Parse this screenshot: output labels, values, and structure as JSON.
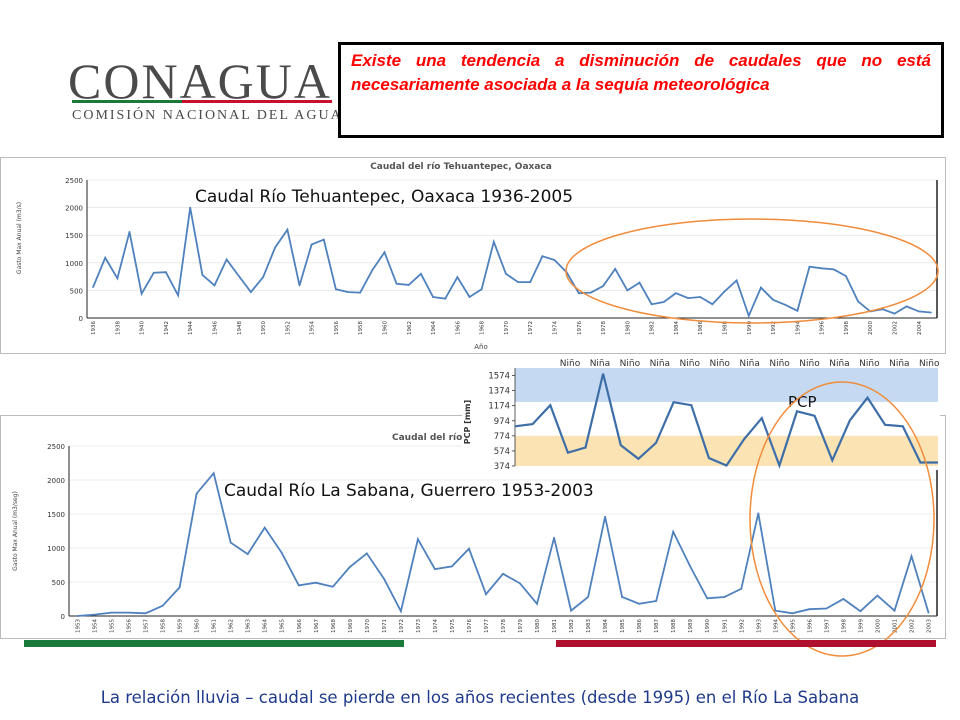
{
  "logo": {
    "name": "CONAGUA",
    "subtitle": "COMISIÓN NACIONAL DEL AGUA"
  },
  "callout": {
    "text": "Existe una tendencia a disminución de caudales que no está necesariamente asociada a la sequía meteorológica"
  },
  "overlay_labels": {
    "tehuantepec": "Caudal Río Tehuantepec, Oaxaca 1936-2005",
    "sabana": "Caudal Río La Sabana, Guerrero 1953-2003",
    "pcp": "PCP"
  },
  "footer": {
    "text": "La relación lluvia – caudal se pierde en los años recientes (desde 1995) en el Río La Sabana"
  },
  "colors": {
    "line": "#4f81bd",
    "ellipse": "#f08c3a",
    "callout_text": "#ff0000",
    "footer_text": "#1f3a8a",
    "band_blue": "#c5daf2",
    "band_orange": "#fbe3b3",
    "green_bar": "#1a7a3a",
    "red_bar": "#b01030"
  },
  "chart_data": [
    {
      "type": "line",
      "title": "Caudal del río Tehuantepec, Oaxaca",
      "xlabel": "Año",
      "ylabel": "Gasto Max Anual (m3/s)",
      "ylim": [
        0,
        2500
      ],
      "yticks": [
        0,
        500,
        1000,
        1500,
        2000,
        2500
      ],
      "x": [
        1936,
        1937,
        1938,
        1939,
        1940,
        1941,
        1942,
        1943,
        1944,
        1945,
        1946,
        1947,
        1948,
        1949,
        1950,
        1951,
        1952,
        1953,
        1954,
        1955,
        1956,
        1957,
        1958,
        1959,
        1960,
        1961,
        1962,
        1963,
        1964,
        1965,
        1966,
        1967,
        1968,
        1969,
        1970,
        1971,
        1972,
        1973,
        1974,
        1975,
        1976,
        1977,
        1978,
        1979,
        1980,
        1981,
        1982,
        1983,
        1984,
        1985,
        1986,
        1987,
        1988,
        1989,
        1990,
        1991,
        1992,
        1993,
        1994,
        1995,
        1996,
        1997,
        1998,
        1999,
        2000,
        2001,
        2002,
        2003,
        2004,
        2005
      ],
      "x_tick_labels": [
        "1936",
        "1938",
        "1940",
        "1942",
        "1944",
        "1946",
        "1948",
        "1950",
        "1952",
        "1954",
        "1956",
        "1958",
        "1960",
        "1962",
        "1964",
        "1966",
        "1968",
        "1970",
        "1972",
        "1974",
        "1976",
        "1978",
        "1980",
        "1982",
        "1984",
        "1986",
        "1988",
        "1990",
        "1992",
        "1994",
        "1996",
        "1998",
        "2000",
        "2002",
        "2004"
      ],
      "series": [
        {
          "values": [
            560,
            1090,
            720,
            1560,
            440,
            820,
            830,
            410,
            2000,
            780,
            590,
            1060,
            760,
            470,
            740,
            1280,
            1600,
            590,
            1330,
            1420,
            520,
            470,
            460,
            870,
            1190,
            620,
            600,
            800,
            380,
            350,
            740,
            380,
            520,
            1380,
            800,
            650,
            650,
            1120,
            1050,
            830,
            450,
            460,
            580,
            890,
            500,
            640,
            250,
            290,
            450,
            360,
            380,
            250,
            480,
            680,
            40,
            550,
            330,
            240,
            130,
            930,
            900,
            880,
            760,
            300,
            120,
            160,
            80,
            210,
            120,
            100
          ]
        }
      ]
    },
    {
      "type": "line",
      "title": "Caudal del río La Sabana, Guerrero",
      "xlabel": "",
      "ylabel": "Gasto Max Anual (m3/seg)",
      "ylim": [
        0,
        2500
      ],
      "yticks": [
        0,
        500,
        1000,
        1500,
        2000,
        2500
      ],
      "x": [
        1953,
        1954,
        1955,
        1956,
        1957,
        1958,
        1959,
        1960,
        1961,
        1962,
        1963,
        1964,
        1965,
        1966,
        1967,
        1968,
        1969,
        1970,
        1971,
        1972,
        1973,
        1974,
        1975,
        1976,
        1977,
        1978,
        1979,
        1980,
        1981,
        1982,
        1983,
        1984,
        1985,
        1986,
        1987,
        1988,
        1989,
        1990,
        1991,
        1992,
        1993,
        1994,
        1995,
        1996,
        1997,
        1998,
        1999,
        2000,
        2001,
        2002,
        2003
      ],
      "x_tick_labels": [
        "1953",
        "1954",
        "1955",
        "1956",
        "1957",
        "1958",
        "1959",
        "1960",
        "1961",
        "1962",
        "1963",
        "1964",
        "1965",
        "1966",
        "1967",
        "1968",
        "1969",
        "1970",
        "1971",
        "1972",
        "1973",
        "1974",
        "1975",
        "1976",
        "1977",
        "1978",
        "1979",
        "1980",
        "1981",
        "1982",
        "1983",
        "1984",
        "1985",
        "1986",
        "1987",
        "1988",
        "1989",
        "1990",
        "1991",
        "1992",
        "1993",
        "1994",
        "1995",
        "1996",
        "1997",
        "1998",
        "1999",
        "2000",
        "2001",
        "2002",
        "2003"
      ],
      "series": [
        {
          "values": [
            0,
            20,
            50,
            50,
            40,
            150,
            420,
            1800,
            2100,
            1080,
            910,
            1300,
            930,
            450,
            490,
            430,
            720,
            920,
            550,
            70,
            1130,
            690,
            730,
            990,
            320,
            620,
            480,
            180,
            1150,
            80,
            280,
            1460,
            280,
            180,
            220,
            1240,
            730,
            260,
            280,
            400,
            1510,
            80,
            40,
            100,
            110,
            250,
            70,
            300,
            80,
            880,
            50
          ]
        }
      ]
    },
    {
      "type": "line",
      "title": "",
      "xlabel": "",
      "ylabel": "PCP [mm]",
      "yticks": [
        374,
        574,
        774,
        974,
        1174,
        1374,
        1574
      ],
      "ylim": [
        374,
        1674
      ],
      "bands": [
        {
          "from": 1224,
          "to": 1674,
          "color": "blue"
        },
        {
          "from": 374,
          "to": 774,
          "color": "orange"
        }
      ],
      "annotations": [
        "Niño",
        "Niña",
        "Niño",
        "Niña",
        "Niño",
        "Niño",
        "Niña",
        "Niño",
        "Niño",
        "Niña",
        "Niño",
        "Niña",
        "Niño",
        "Niña",
        "Niño"
      ],
      "series": [
        {
          "values": [
            900,
            930,
            1180,
            550,
            620,
            1600,
            650,
            470,
            680,
            1220,
            1180,
            480,
            380,
            730,
            1010,
            380,
            1100,
            1040,
            450,
            980,
            1280,
            920,
            900,
            420,
            420
          ]
        }
      ]
    }
  ]
}
